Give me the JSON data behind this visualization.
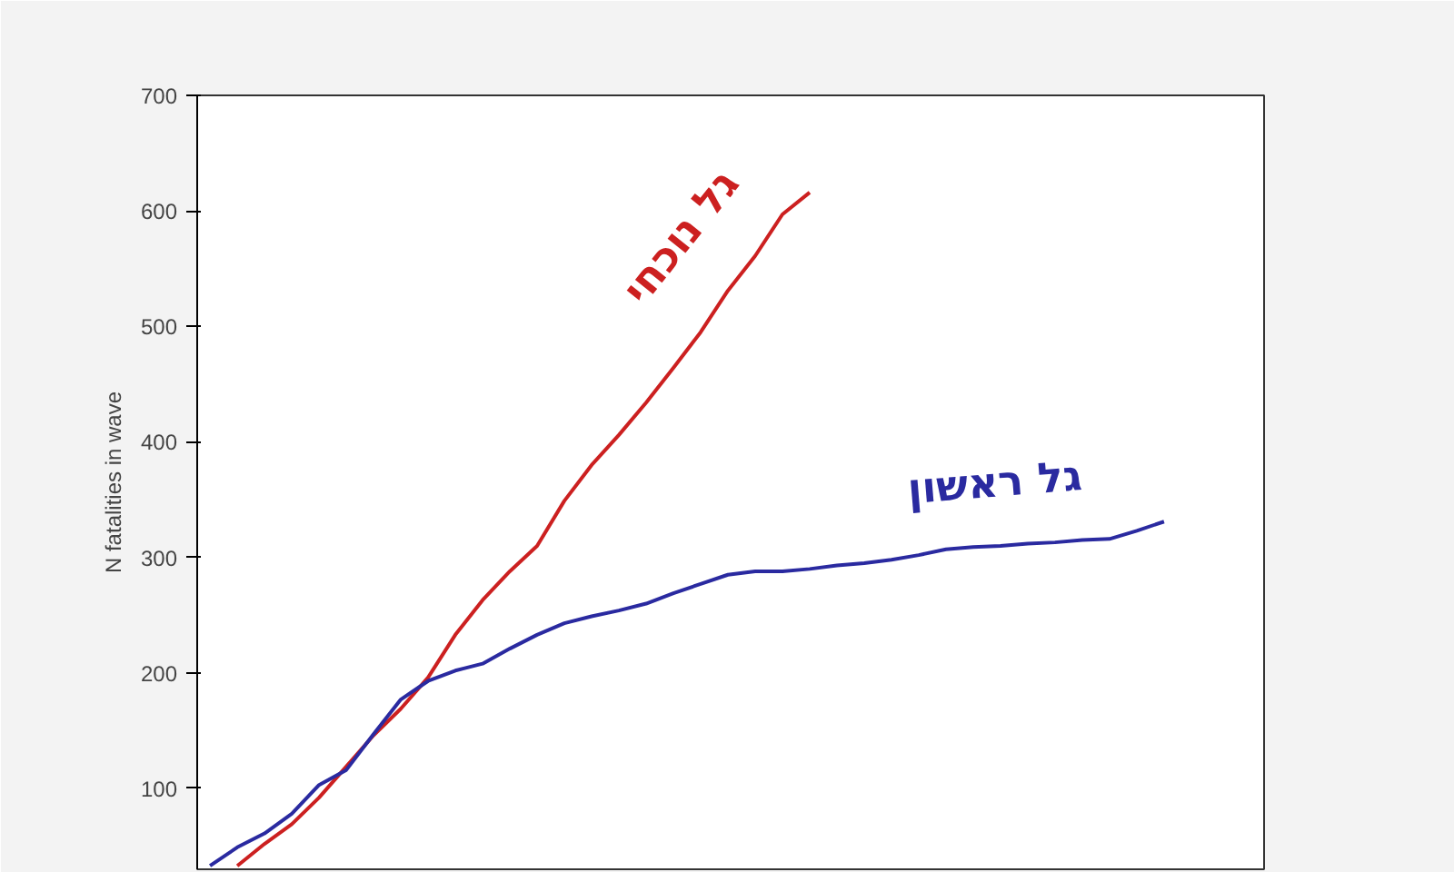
{
  "chart_data": {
    "type": "line",
    "ylabel": "N fatalities in wave",
    "categories": [
      null,
      null,
      null,
      null,
      null,
      null,
      null,
      null,
      null,
      null,
      null,
      null,
      null,
      null,
      null,
      null,
      null,
      null,
      null,
      null,
      null,
      null,
      null,
      null,
      null,
      null,
      null,
      null,
      null,
      null,
      null,
      null,
      null,
      null,
      null,
      null
    ],
    "series": [
      {
        "name": "גל נוכחי",
        "color": "#cc2020",
        "values": [
          null,
          33,
          52,
          69,
          92,
          119,
          146,
          169,
          196,
          233,
          263,
          288,
          310,
          349,
          380,
          406,
          434,
          464,
          495,
          531,
          561,
          597,
          616,
          null,
          null,
          null,
          null,
          null,
          null,
          null,
          null,
          null,
          null,
          null,
          null,
          null
        ]
      },
      {
        "name": "גל ראשון",
        "color": "#2a2aa0",
        "values": [
          33,
          49,
          61,
          78,
          103,
          116,
          147,
          177,
          193,
          202,
          208,
          221,
          233,
          243,
          249,
          254,
          260,
          269,
          277,
          285,
          288,
          288,
          290,
          293,
          295,
          298,
          302,
          307,
          309,
          310,
          312,
          313,
          315,
          316,
          323,
          331
        ]
      }
    ],
    "ylim": [
      30,
      700
    ],
    "yticks": [
      100,
      200,
      300,
      400,
      500,
      600,
      700
    ],
    "grid": false,
    "marker": "none",
    "line_style": "solid",
    "tick_labels": "y"
  }
}
